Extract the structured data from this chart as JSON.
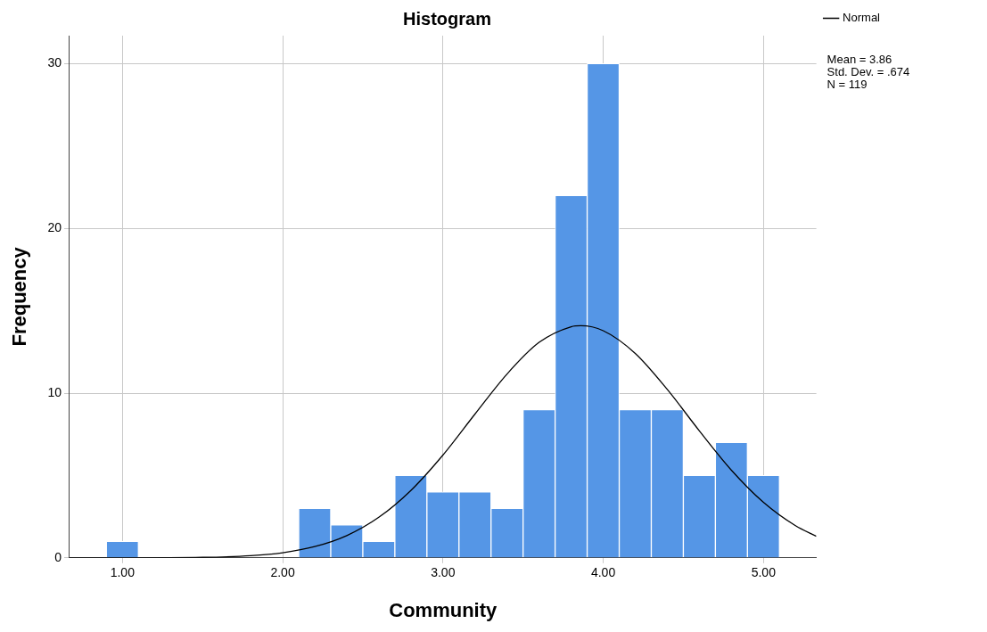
{
  "chart_data": {
    "type": "histogram",
    "title": "Histogram",
    "xlabel": "Community",
    "ylabel": "Frequency",
    "bins": [
      0.9,
      1.1,
      1.3,
      1.5,
      1.7,
      1.9,
      2.1,
      2.3,
      2.5,
      2.7,
      2.9,
      3.1,
      3.3,
      3.5,
      3.7,
      3.9,
      4.1,
      4.3,
      4.5,
      4.7,
      4.9,
      5.1
    ],
    "values": [
      1,
      0,
      0,
      0,
      0,
      0,
      3,
      2,
      1,
      5,
      4,
      4,
      3,
      9,
      22,
      30,
      9,
      9,
      5,
      7,
      5
    ],
    "color": "#5596e6",
    "series": [
      {
        "name": "Normal",
        "type": "line",
        "color": "#000000",
        "x": [
          0.67,
          1.0,
          1.5,
          1.8,
          2.0,
          2.2,
          2.4,
          2.6,
          2.8,
          3.0,
          3.2,
          3.4,
          3.6,
          3.8,
          3.86,
          4.0,
          4.2,
          4.4,
          4.6,
          4.8,
          5.0,
          5.2,
          5.33
        ],
        "values": [
          0,
          0,
          0.03,
          0.13,
          0.31,
          0.68,
          1.35,
          2.46,
          4.09,
          6.24,
          8.73,
          11.16,
          13.08,
          14.03,
          14.09,
          13.79,
          12.41,
          10.22,
          7.71,
          5.32,
          3.37,
          1.95,
          1.31
        ]
      }
    ],
    "xlim": [
      0.67,
      5.33
    ],
    "xticks": [
      {
        "value": 1,
        "label": "1.00"
      },
      {
        "value": 2,
        "label": "2.00"
      },
      {
        "value": 3,
        "label": "3.00"
      },
      {
        "value": 4,
        "label": "4.00"
      },
      {
        "value": 5,
        "label": "5.00"
      }
    ],
    "ylim": [
      0,
      31.7
    ],
    "yticks": [
      0,
      10,
      20,
      30
    ],
    "grid": true,
    "legend": "top right",
    "marker": "none",
    "line_style": "solid",
    "annotations": [
      "Mean = 3.86",
      "Std. Dev. = .674",
      "N = 119"
    ]
  }
}
